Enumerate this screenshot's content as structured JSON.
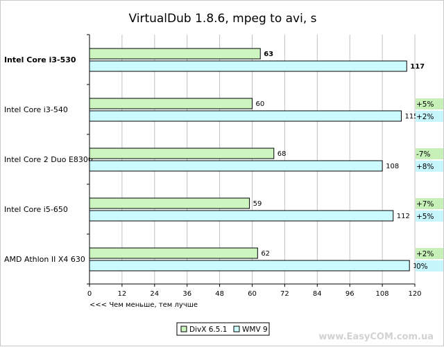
{
  "chart_data": {
    "type": "bar",
    "orientation": "horizontal",
    "title": "VirtualDub 1.8.6, mpeg to avi, s",
    "categories": [
      "Intel Core i3-530",
      "Intel Core i3-540",
      "Intel Core 2 Duo E8300",
      "Intel Core i5-650",
      "AMD Athlon II X4 630"
    ],
    "highlight_category": "Intel Core i3-530",
    "series": [
      {
        "name": "DivX 6.5.1",
        "values": [
          63,
          60,
          68,
          59,
          62
        ],
        "color": "#ccf5c0",
        "delta_bg": "#c6f0b8",
        "deltas": [
          "",
          "+5%",
          "-7%",
          "+7%",
          "+2%"
        ]
      },
      {
        "name": "WMV 9",
        "values": [
          117,
          115,
          108,
          112,
          118
        ],
        "color": "#ccfbff",
        "delta_bg": "#c6f6fb",
        "deltas": [
          "",
          "+2%",
          "+8%",
          "+5%",
          "0%"
        ]
      }
    ],
    "xlim": [
      0,
      120
    ],
    "xticks": [
      0,
      12,
      24,
      36,
      48,
      60,
      72,
      84,
      96,
      108,
      120
    ],
    "grid": true,
    "grid_color": "#c0c0c0",
    "note": "<<< Чем меньше, тем лучше",
    "legend_position": "bottom",
    "watermark": "www.EasyCOM.com.ua"
  }
}
